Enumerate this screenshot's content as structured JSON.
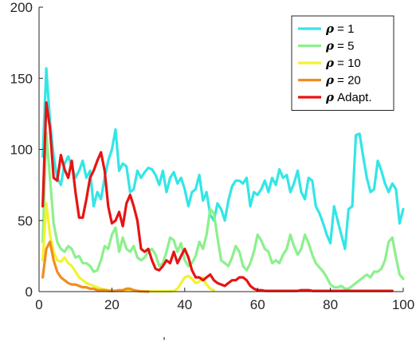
{
  "chart_data": {
    "type": "line",
    "title": "",
    "xlabel": "",
    "ylabel": "",
    "xlim": [
      0,
      100
    ],
    "ylim": [
      0,
      200
    ],
    "x_ticks": [
      0,
      20,
      40,
      60,
      80,
      100
    ],
    "y_ticks": [
      0,
      50,
      100,
      150,
      200
    ],
    "grid": false,
    "legend_position": "top-right",
    "series": [
      {
        "name": "ρ = 1",
        "symbol": "ρ",
        "label_text": " = 1",
        "color": "#33e6e6",
        "x": [
          1,
          2,
          3,
          4,
          5,
          6,
          7,
          8,
          9,
          10,
          11,
          12,
          13,
          14,
          15,
          16,
          17,
          18,
          19,
          20,
          21,
          22,
          23,
          24,
          25,
          26,
          27,
          28,
          29,
          30,
          31,
          32,
          33,
          34,
          35,
          36,
          37,
          38,
          39,
          40,
          41,
          42,
          43,
          44,
          45,
          46,
          47,
          48,
          49,
          50,
          51,
          52,
          53,
          54,
          55,
          56,
          57,
          58,
          59,
          60,
          61,
          62,
          63,
          64,
          65,
          66,
          67,
          68,
          69,
          70,
          71,
          72,
          73,
          74,
          75,
          76,
          77,
          78,
          79,
          80,
          81,
          82,
          83,
          84,
          85,
          86,
          87,
          88,
          89,
          90,
          91,
          92,
          93,
          94,
          95,
          96,
          97,
          98,
          99,
          100
        ],
        "y": [
          95,
          157,
          120,
          95,
          80,
          75,
          90,
          95,
          88,
          80,
          85,
          92,
          80,
          85,
          60,
          70,
          65,
          80,
          92,
          100,
          114,
          85,
          90,
          88,
          70,
          72,
          85,
          80,
          84,
          87,
          86,
          82,
          75,
          85,
          70,
          80,
          84,
          76,
          80,
          72,
          60,
          70,
          72,
          82,
          64,
          70,
          54,
          50,
          62,
          58,
          50,
          64,
          74,
          78,
          78,
          76,
          80,
          60,
          70,
          68,
          72,
          78,
          70,
          80,
          75,
          86,
          80,
          82,
          70,
          76,
          85,
          70,
          65,
          80,
          78,
          60,
          55,
          48,
          40,
          34,
          60,
          50,
          40,
          30,
          58,
          60,
          110,
          111,
          95,
          80,
          70,
          72,
          92,
          85,
          76,
          70,
          76,
          72,
          48,
          58
        ]
      },
      {
        "name": "ρ = 5",
        "symbol": "ρ",
        "label_text": " = 5",
        "color": "#8cf08c",
        "x": [
          1,
          2,
          3,
          4,
          5,
          6,
          7,
          8,
          9,
          10,
          11,
          12,
          13,
          14,
          15,
          16,
          17,
          18,
          19,
          20,
          21,
          22,
          23,
          24,
          25,
          26,
          27,
          28,
          29,
          30,
          31,
          32,
          33,
          34,
          35,
          36,
          37,
          38,
          39,
          40,
          41,
          42,
          43,
          44,
          45,
          46,
          47,
          48,
          49,
          50,
          51,
          52,
          53,
          54,
          55,
          56,
          57,
          58,
          59,
          60,
          61,
          62,
          63,
          64,
          65,
          66,
          67,
          68,
          69,
          70,
          71,
          72,
          73,
          74,
          75,
          76,
          77,
          78,
          79,
          80,
          81,
          82,
          83,
          84,
          85,
          86,
          87,
          88,
          89,
          90,
          91,
          92,
          93,
          94,
          95,
          96,
          97,
          98,
          99,
          100
        ],
        "y": [
          35,
          112,
          80,
          48,
          35,
          30,
          28,
          32,
          30,
          24,
          25,
          20,
          20,
          18,
          14,
          15,
          22,
          32,
          30,
          40,
          45,
          28,
          38,
          30,
          28,
          32,
          24,
          22,
          24,
          28,
          30,
          26,
          18,
          20,
          28,
          38,
          36,
          28,
          34,
          22,
          18,
          20,
          25,
          35,
          30,
          40,
          58,
          55,
          38,
          22,
          20,
          18,
          24,
          32,
          28,
          18,
          15,
          20,
          28,
          40,
          36,
          30,
          28,
          20,
          22,
          20,
          26,
          30,
          40,
          32,
          26,
          30,
          40,
          34,
          26,
          20,
          17,
          14,
          10,
          5,
          3,
          3,
          4,
          2,
          2,
          4,
          6,
          8,
          10,
          12,
          10,
          14,
          14,
          16,
          22,
          35,
          38,
          24,
          12,
          9
        ]
      },
      {
        "name": "ρ = 10",
        "symbol": "ρ",
        "label_text": " = 10",
        "color": "#f2f230",
        "x": [
          1,
          2,
          3,
          4,
          5,
          6,
          7,
          8,
          9,
          10,
          11,
          12,
          13,
          14,
          15,
          16,
          17,
          18,
          19,
          20,
          21,
          22,
          23,
          24,
          25,
          26,
          27,
          28,
          29,
          30,
          31,
          32,
          33,
          34,
          35,
          36,
          37,
          38,
          39,
          40,
          41,
          42,
          43,
          44,
          45,
          46,
          47,
          48
        ],
        "y": [
          22,
          62,
          40,
          28,
          22,
          21,
          24,
          20,
          18,
          14,
          10,
          8,
          6,
          5,
          4,
          3,
          2,
          1.5,
          1,
          1,
          0.5,
          0.5,
          0.5,
          1,
          1,
          0.5,
          0.3,
          0.2,
          0.2,
          0.2,
          0.2,
          0.2,
          0.2,
          0.2,
          0.2,
          0.2,
          0.5,
          2,
          6,
          10,
          11,
          9,
          6,
          7,
          10,
          5,
          2,
          1
        ]
      },
      {
        "name": "ρ = 20",
        "symbol": "ρ",
        "label_text": " = 20",
        "color": "#f28c1f",
        "x": [
          1,
          2,
          3,
          4,
          5,
          6,
          7,
          8,
          9,
          10,
          11,
          12,
          13,
          14,
          15,
          16,
          17,
          18,
          19,
          20,
          21,
          22,
          23,
          24,
          25,
          26,
          27,
          28,
          29,
          30
        ],
        "y": [
          10,
          30,
          35,
          22,
          14,
          10,
          8,
          6,
          5,
          5,
          4,
          3,
          3,
          2,
          2,
          1,
          1,
          1,
          0.5,
          0.5,
          0.5,
          1,
          1,
          2,
          2,
          1,
          0.5,
          0.2,
          0.1,
          0
        ]
      },
      {
        "name": "ρ Adapt.",
        "symbol": "ρ",
        "label_text": " Adapt.",
        "color": "#e61414",
        "x": [
          1,
          2,
          3,
          4,
          5,
          6,
          7,
          8,
          9,
          10,
          11,
          12,
          13,
          14,
          15,
          16,
          17,
          18,
          19,
          20,
          21,
          22,
          23,
          24,
          25,
          26,
          27,
          28,
          29,
          30,
          31,
          32,
          33,
          34,
          35,
          36,
          37,
          38,
          39,
          40,
          41,
          42,
          43,
          44,
          45,
          46,
          47,
          48,
          49,
          50,
          51,
          52,
          53,
          54,
          55,
          56,
          57,
          58,
          59,
          60,
          61,
          62,
          63,
          64,
          65,
          66,
          67,
          68,
          69,
          70,
          71,
          72,
          73,
          74,
          75,
          76,
          77,
          78,
          79,
          80,
          81,
          82,
          83,
          84,
          85,
          86,
          87,
          88,
          89,
          90,
          91,
          92,
          93,
          94,
          95,
          96,
          97
        ],
        "y": [
          60,
          133,
          115,
          80,
          78,
          96,
          86,
          80,
          92,
          70,
          52,
          52,
          65,
          80,
          85,
          92,
          98,
          85,
          60,
          48,
          50,
          56,
          46,
          62,
          68,
          60,
          50,
          30,
          28,
          30,
          22,
          16,
          15,
          18,
          22,
          20,
          28,
          20,
          25,
          30,
          24,
          15,
          10,
          10,
          8,
          10,
          12,
          8,
          6,
          5,
          4,
          6,
          8,
          8,
          10,
          10,
          8,
          4,
          2,
          1,
          1,
          0.5,
          0.5,
          0.5,
          0.5,
          0.5,
          0.5,
          0.5,
          0.5,
          0.5,
          0.5,
          1,
          1,
          1,
          0.5,
          0.5,
          0.5,
          0.5,
          0.5,
          0.5,
          0.5,
          0.5,
          0.5,
          0.5,
          0.5,
          0.5,
          0.5,
          0.5,
          0.5,
          0.5,
          0.5,
          0.5,
          0.5,
          0.5,
          0.5,
          0.5,
          0.5
        ]
      }
    ]
  },
  "stray_mark": ","
}
